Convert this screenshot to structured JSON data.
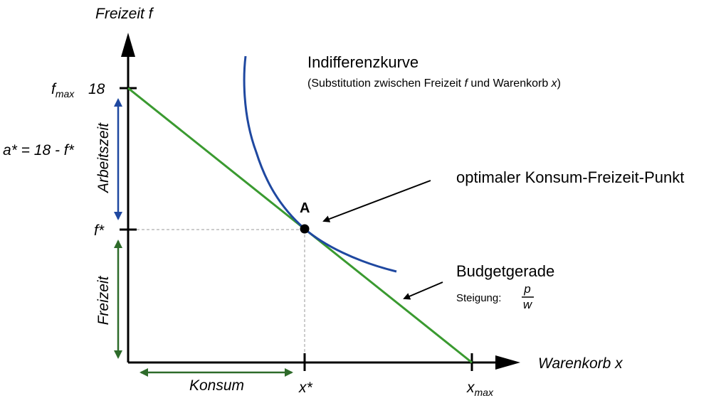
{
  "axes": {
    "y_label": "Freizeit f",
    "x_label": "Warenkorb x"
  },
  "y_ticks": {
    "fmax_symbol": "f",
    "fmax_sub": "max",
    "fmax_value": "18",
    "fstar": "f*"
  },
  "x_ticks": {
    "xstar": "x*",
    "xmax_symbol": "x",
    "xmax_sub": "max"
  },
  "left": {
    "a_formula": "a* = 18 - f*",
    "arbeitszeit": "Arbeitszeit",
    "freizeit": "Freizeit",
    "konsum": "Konsum"
  },
  "indifference": {
    "title": "Indifferenzkurve",
    "sub_open": "(Substitution zwischen Freizeit ",
    "sub_f": "f",
    "sub_mid": " und Warenkorb ",
    "sub_x": "x",
    "sub_close": ")"
  },
  "optimum": {
    "label": "optimaler Konsum-Freizeit-Punkt",
    "point": "A"
  },
  "budget": {
    "title": "Budgetgerade",
    "slope_label": "Steigung:",
    "slope_num": "p",
    "slope_den": "w"
  },
  "colors": {
    "budget_line": "#3a9a30",
    "indifference_curve": "#1f48a0",
    "arbeitszeit_arrow": "#1f48a0",
    "freizeit_arrow": "#2e6b2a",
    "konsum_arrow": "#2e6b2a",
    "axes": "#000000",
    "guides": "#999999"
  }
}
